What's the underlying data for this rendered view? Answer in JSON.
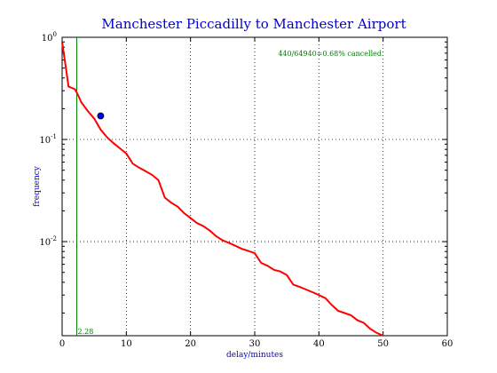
{
  "chart_data": {
    "type": "line",
    "title": "Manchester Piccadilly to Manchester Airport",
    "xlabel": "delay/minutes",
    "ylabel": "frequency",
    "xlim": [
      0,
      60
    ],
    "ylim": [
      0.0012,
      1.0
    ],
    "yscale": "log",
    "grid": true,
    "x_ticks": [
      "0",
      "10",
      "20",
      "30",
      "40",
      "50",
      "60"
    ],
    "y_ticks": [
      {
        "value": 1.0,
        "base": "10",
        "exp": "0"
      },
      {
        "value": 0.1,
        "base": "10",
        "exp": "-1"
      },
      {
        "value": 0.01,
        "base": "10",
        "exp": "-2"
      }
    ],
    "series": [
      {
        "color": "#ff0000",
        "x": [
          0,
          0.5,
          1,
          2,
          2.5,
          3,
          4,
          5,
          6,
          7,
          8,
          9,
          10,
          11,
          12,
          13,
          14,
          15,
          16,
          17,
          18,
          19,
          20,
          21,
          22,
          23,
          24,
          25,
          26,
          27,
          28,
          29,
          30,
          31,
          32,
          33,
          34,
          35,
          36,
          37,
          38,
          39,
          40,
          41,
          42,
          43,
          44,
          45,
          46,
          47,
          48,
          49,
          50
        ],
        "y": [
          0.9,
          0.55,
          0.33,
          0.31,
          0.27,
          0.23,
          0.19,
          0.16,
          0.125,
          0.105,
          0.092,
          0.082,
          0.073,
          0.058,
          0.053,
          0.049,
          0.045,
          0.04,
          0.027,
          0.024,
          0.022,
          0.019,
          0.017,
          0.0152,
          0.0142,
          0.0128,
          0.0113,
          0.0103,
          0.0097,
          0.0091,
          0.0085,
          0.0081,
          0.0077,
          0.0062,
          0.0058,
          0.0053,
          0.0051,
          0.0047,
          0.0038,
          0.0036,
          0.0034,
          0.0032,
          0.003,
          0.0028,
          0.0024,
          0.0021,
          0.002,
          0.0019,
          0.0017,
          0.0016,
          0.0014,
          0.00128,
          0.0012
        ]
      }
    ],
    "marker": {
      "x": 6,
      "y": 0.17,
      "color": "#0000ff"
    },
    "vline": {
      "x": 2.28,
      "color": "#008000",
      "label": "2.28"
    },
    "annotation": "440/64940=0.68% cancelled"
  }
}
